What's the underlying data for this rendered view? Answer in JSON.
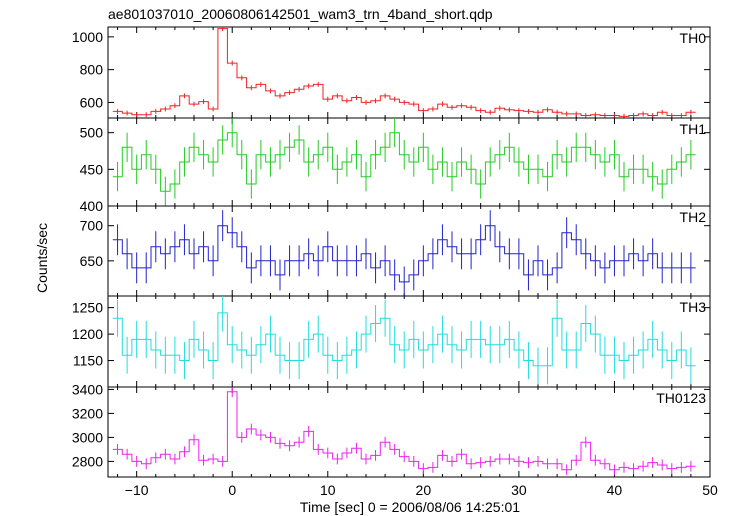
{
  "chart_data": {
    "type": "line",
    "title": "ae801037010_20060806142501_wam3_trn_4band_short.qdp",
    "xlabel": "Time [sec] 0 = 2006/08/06 14:25:01",
    "ylabel": "Counts/sec",
    "xlim": [
      -13,
      50
    ],
    "x_ticks": [
      -10,
      0,
      10,
      20,
      30,
      40,
      50
    ],
    "x_tick_labels": [
      "−10",
      "0",
      "10",
      "20",
      "30",
      "40",
      "50"
    ],
    "x": [
      -12,
      -11,
      -10,
      -9,
      -8,
      -7,
      -6,
      -5,
      -4,
      -3,
      -2,
      -1,
      0,
      1,
      2,
      3,
      4,
      5,
      6,
      7,
      8,
      9,
      10,
      11,
      12,
      13,
      14,
      15,
      16,
      17,
      18,
      19,
      20,
      21,
      22,
      23,
      24,
      25,
      26,
      27,
      28,
      29,
      30,
      31,
      32,
      33,
      34,
      35,
      36,
      37,
      38,
      39,
      40,
      41,
      42,
      43,
      44,
      45,
      46,
      47,
      48
    ],
    "panels": [
      {
        "name": "TH0",
        "color": "#ee2222",
        "ylim": [
          505,
          1060
        ],
        "y_ticks": [
          600,
          800,
          1000
        ],
        "y_tick_labels": [
          "600",
          "800",
          "1000"
        ],
        "values": [
          545,
          535,
          525,
          525,
          545,
          560,
          580,
          640,
          590,
          605,
          560,
          1050,
          840,
          750,
          690,
          710,
          670,
          640,
          660,
          680,
          700,
          710,
          620,
          640,
          610,
          630,
          600,
          610,
          640,
          620,
          600,
          590,
          550,
          560,
          590,
          570,
          580,
          570,
          550,
          540,
          565,
          555,
          550,
          545,
          540,
          555,
          540,
          530,
          530,
          520,
          525,
          520,
          520,
          515,
          520,
          530,
          520,
          540,
          520,
          520,
          540
        ],
        "error": 15
      },
      {
        "name": "TH1",
        "color": "#22cc22",
        "ylim": [
          400,
          520
        ],
        "y_ticks": [
          400,
          450,
          500
        ],
        "y_tick_labels": [
          "400",
          "450",
          "500"
        ],
        "values": [
          440,
          480,
          450,
          470,
          450,
          420,
          430,
          460,
          480,
          470,
          460,
          490,
          500,
          470,
          430,
          470,
          460,
          470,
          480,
          490,
          460,
          470,
          480,
          450,
          460,
          470,
          440,
          470,
          480,
          500,
          470,
          460,
          480,
          450,
          460,
          440,
          460,
          450,
          430,
          460,
          470,
          480,
          460,
          450,
          450,
          440,
          470,
          460,
          480,
          480,
          470,
          460,
          470,
          440,
          450,
          450,
          440,
          430,
          450,
          460,
          470
        ],
        "error": 20
      },
      {
        "name": "TH2",
        "color": "#2222cc",
        "ylim": [
          600,
          728
        ],
        "y_ticks": [
          650,
          700
        ],
        "y_tick_labels": [
          "650",
          "700"
        ],
        "values": [
          680,
          660,
          640,
          640,
          670,
          660,
          670,
          680,
          660,
          670,
          650,
          700,
          690,
          670,
          640,
          650,
          650,
          630,
          650,
          650,
          660,
          650,
          670,
          650,
          650,
          650,
          660,
          640,
          650,
          630,
          620,
          630,
          650,
          660,
          680,
          670,
          660,
          660,
          680,
          700,
          670,
          660,
          660,
          630,
          650,
          630,
          640,
          690,
          680,
          660,
          650,
          640,
          650,
          650,
          660,
          650,
          660,
          640,
          640,
          640,
          640
        ],
        "error": 22
      },
      {
        "name": "TH3",
        "color": "#22dddd",
        "ylim": [
          1100,
          1272
        ],
        "y_ticks": [
          1150,
          1200,
          1250
        ],
        "y_tick_labels": [
          "1150",
          "1200",
          "1250"
        ],
        "values": [
          1230,
          1160,
          1190,
          1190,
          1170,
          1160,
          1160,
          1150,
          1190,
          1170,
          1150,
          1240,
          1180,
          1170,
          1160,
          1180,
          1200,
          1160,
          1150,
          1150,
          1190,
          1200,
          1160,
          1150,
          1160,
          1170,
          1200,
          1220,
          1230,
          1180,
          1170,
          1190,
          1170,
          1180,
          1200,
          1180,
          1170,
          1190,
          1190,
          1180,
          1180,
          1190,
          1170,
          1150,
          1140,
          1140,
          1230,
          1170,
          1170,
          1220,
          1200,
          1160,
          1160,
          1150,
          1160,
          1170,
          1190,
          1170,
          1150,
          1170,
          1140
        ],
        "error": 35
      },
      {
        "name": "TH0123",
        "color": "#ee22ee",
        "ylim": [
          2670,
          3420
        ],
        "y_ticks": [
          2800,
          3000,
          3200,
          3400
        ],
        "y_tick_labels": [
          "2800",
          "3000",
          "3200",
          "3400"
        ],
        "values": [
          2900,
          2860,
          2800,
          2780,
          2830,
          2860,
          2820,
          2880,
          2980,
          2810,
          2820,
          2800,
          3380,
          3000,
          3070,
          3020,
          3000,
          2950,
          2930,
          2960,
          3050,
          2900,
          2870,
          2820,
          2870,
          2910,
          2820,
          2850,
          2960,
          2900,
          2840,
          2800,
          2740,
          2750,
          2850,
          2800,
          2860,
          2780,
          2790,
          2800,
          2820,
          2820,
          2800,
          2790,
          2800,
          2780,
          2780,
          2730,
          2810,
          2960,
          2810,
          2780,
          2730,
          2750,
          2740,
          2760,
          2790,
          2770,
          2740,
          2750,
          2760
        ],
        "error": 45
      }
    ]
  }
}
